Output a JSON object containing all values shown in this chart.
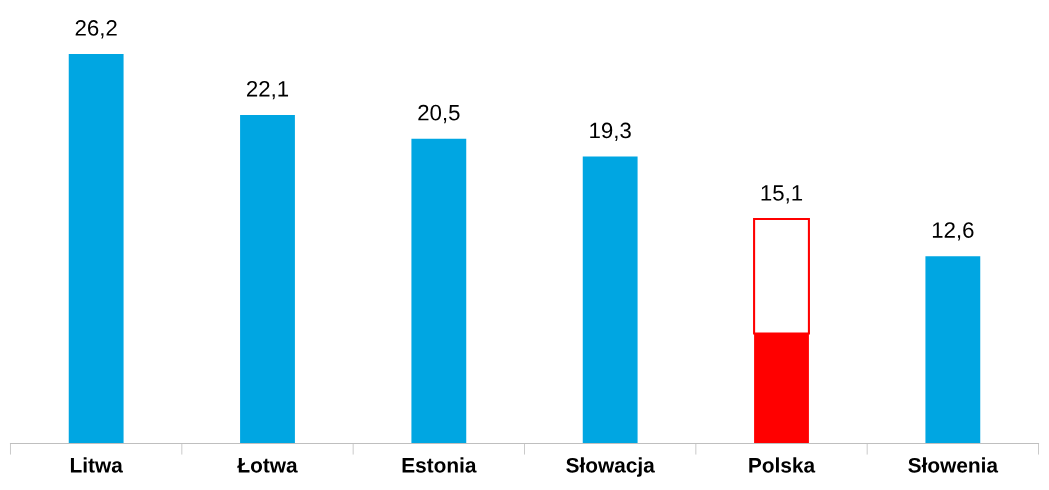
{
  "chart_data": {
    "type": "bar",
    "stacked": true,
    "categories": [
      "Litwa",
      "Łotwa",
      "Estonia",
      "Słowacja",
      "Polska",
      "Słowenia"
    ],
    "series": [
      {
        "colors": [
          "#00a6e2",
          "#00a6e2",
          "#00a6e2",
          "#00a6e2",
          "#ff0000",
          "#00a6e2"
        ],
        "values": [
          26.2,
          22.1,
          20.5,
          19.3,
          7.4,
          12.6
        ],
        "value_labels": [
          "26,2",
          "22,1",
          "20,5",
          "19,3",
          null,
          "12,6"
        ]
      },
      {
        "color": "#ffffff",
        "values": [
          null,
          null,
          null,
          null,
          7.7,
          null
        ]
      }
    ],
    "totals": [
      null,
      null,
      null,
      null,
      "15,1",
      null
    ],
    "grid": false,
    "legend": false,
    "tick_labels": "x"
  }
}
